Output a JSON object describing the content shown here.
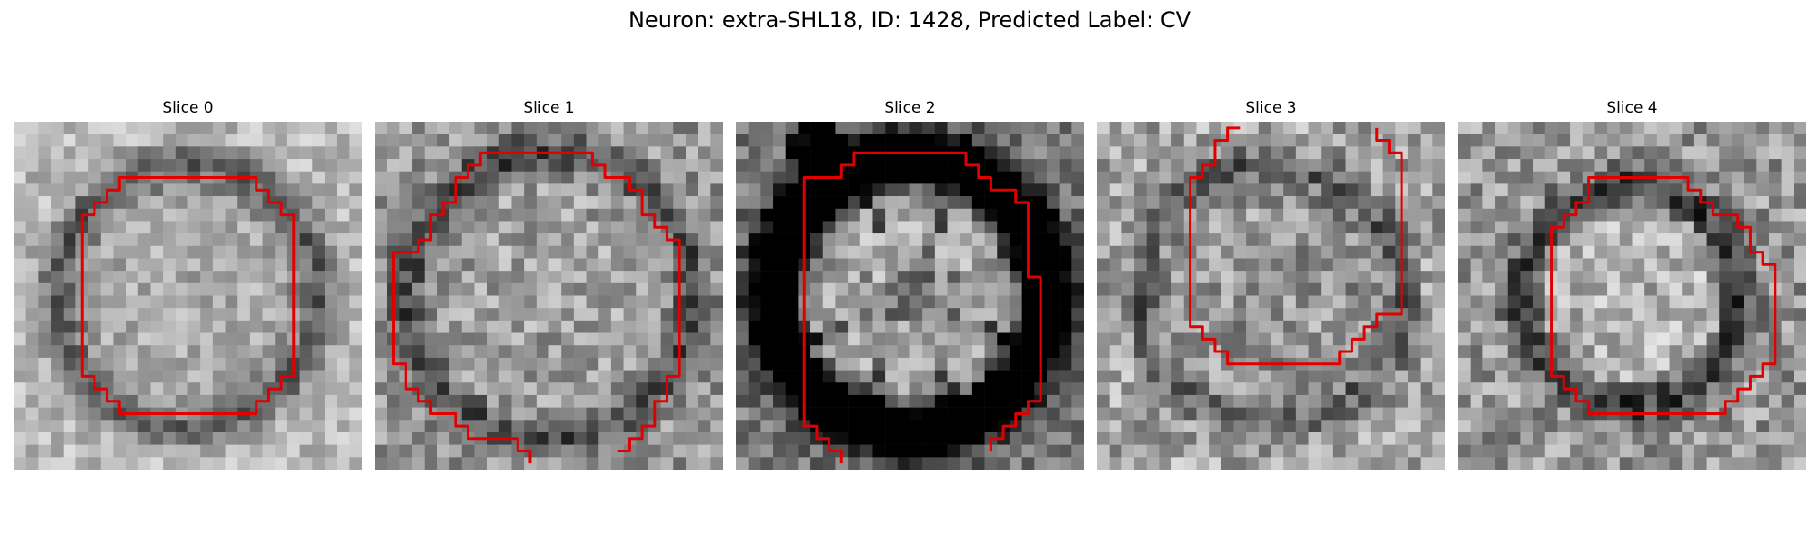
{
  "figure": {
    "title": "Neuron: extra-SHL18, ID: 1428, Predicted Label: CV",
    "contour_color": "#e00000",
    "image_colormap": "gray"
  },
  "slices": [
    {
      "title": "Slice 0"
    },
    {
      "title": "Slice 1"
    },
    {
      "title": "Slice 2"
    },
    {
      "title": "Slice 3"
    },
    {
      "title": "Slice 4"
    }
  ]
}
